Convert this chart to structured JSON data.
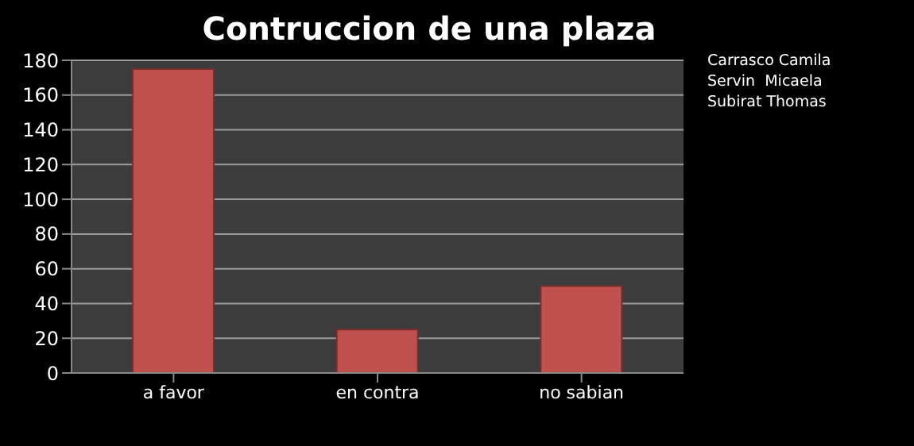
{
  "chart_data": {
    "type": "bar",
    "title": "Contruccion de una plaza",
    "categories": [
      "a favor",
      "en contra",
      "no sabian"
    ],
    "values": [
      175,
      25,
      50
    ],
    "color": "#c0504d",
    "ylim": [
      0,
      180
    ],
    "yticks": [
      0,
      20,
      40,
      60,
      80,
      100,
      120,
      140,
      160,
      180
    ],
    "grid": "y",
    "annotations": [
      "Carrasco Camila",
      "Servin  Micaela",
      "Subirat Thomas"
    ]
  }
}
